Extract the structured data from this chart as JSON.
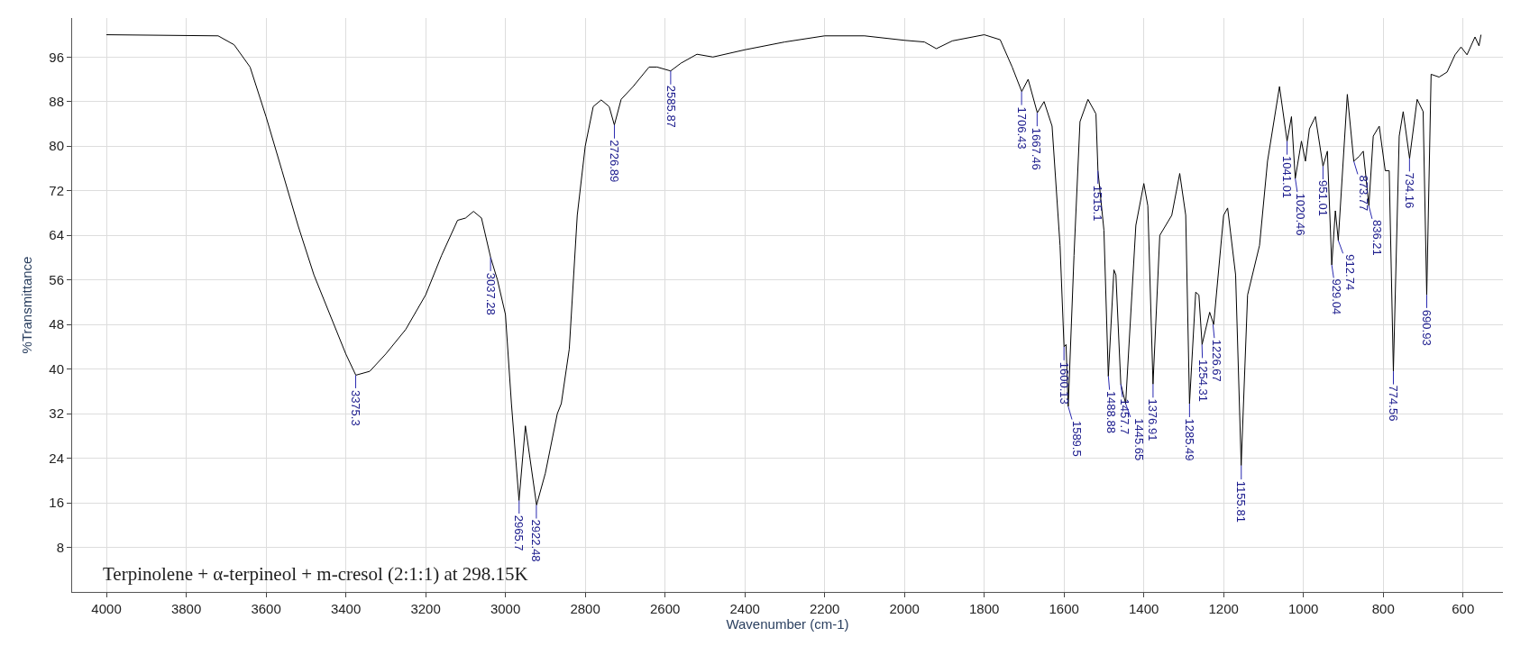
{
  "chart_data": {
    "type": "line",
    "xlabel": "Wavenumber (cm-1)",
    "ylabel": "%Transmittance",
    "xlim": [
      4086,
      500
    ],
    "xticks": [
      4000,
      3800,
      3600,
      3400,
      3200,
      3000,
      2800,
      2600,
      2400,
      2200,
      2000,
      1800,
      1600,
      1400,
      1200,
      1000,
      800,
      600
    ],
    "ylim": [
      0,
      103
    ],
    "yticks": [
      8,
      16,
      24,
      32,
      40,
      48,
      56,
      64,
      72,
      80,
      88,
      96
    ],
    "grid": true,
    "x": [
      4000,
      3720,
      3680,
      3640,
      3600,
      3560,
      3520,
      3480,
      3440,
      3400,
      3375,
      3340,
      3300,
      3250,
      3200,
      3160,
      3120,
      3100,
      3080,
      3060,
      3037,
      3020,
      3000,
      2985,
      2966,
      2950,
      2922,
      2900,
      2870,
      2860,
      2840,
      2820,
      2800,
      2780,
      2760,
      2740,
      2727,
      2710,
      2680,
      2640,
      2620,
      2586,
      2560,
      2520,
      2480,
      2400,
      2300,
      2200,
      2100,
      2000,
      1950,
      1920,
      1880,
      1800,
      1760,
      1730,
      1706,
      1690,
      1667,
      1650,
      1630,
      1610,
      1600,
      1595,
      1589.5,
      1575,
      1560,
      1540,
      1520,
      1515,
      1500,
      1489,
      1475,
      1470,
      1457.7,
      1445.6,
      1420,
      1400,
      1390,
      1377,
      1360,
      1330,
      1310,
      1295,
      1285.5,
      1270,
      1262,
      1254,
      1235,
      1225,
      1200,
      1190,
      1170,
      1156,
      1140,
      1110,
      1090,
      1060,
      1041,
      1030,
      1020.5,
      1005,
      995,
      985,
      970,
      951,
      940,
      929,
      920,
      912.7,
      890,
      873.8,
      860,
      850,
      836,
      825,
      810,
      795,
      785,
      774.6,
      760,
      750,
      734,
      715,
      700,
      691,
      680,
      660,
      640,
      620,
      605,
      590,
      570,
      560,
      555
    ],
    "series": [
      {
        "color": "#000000",
        "values": [
          100.0,
          99.8,
          98.2,
          94.2,
          85.3,
          75.6,
          65.8,
          56.9,
          49.8,
          42.7,
          38.9,
          39.6,
          42.7,
          47.1,
          53.3,
          60.4,
          66.7,
          67.1,
          68.3,
          67.1,
          60.0,
          56.0,
          49.8,
          33.8,
          16.4,
          29.8,
          15.6,
          21.3,
          32.0,
          33.8,
          43.6,
          67.6,
          80.0,
          87.1,
          88.3,
          87.1,
          83.8,
          88.4,
          90.7,
          94.2,
          94.2,
          93.5,
          94.9,
          96.5,
          96.0,
          97.3,
          98.7,
          99.8,
          99.8,
          99.0,
          98.7,
          97.5,
          98.9,
          100.0,
          99.1,
          94.2,
          89.8,
          92.0,
          86.0,
          88.0,
          83.6,
          62.2,
          44.0,
          44.4,
          33.3,
          60.4,
          84.4,
          88.4,
          85.8,
          75.6,
          64.9,
          38.7,
          57.8,
          56.9,
          37.3,
          33.8,
          65.8,
          73.3,
          69.3,
          37.3,
          64.0,
          67.6,
          75.1,
          67.6,
          33.8,
          53.8,
          53.3,
          44.4,
          50.2,
          48.0,
          67.6,
          68.9,
          56.9,
          22.7,
          53.3,
          62.2,
          77.3,
          90.7,
          80.9,
          85.3,
          74.2,
          80.9,
          77.3,
          83.1,
          85.3,
          76.4,
          79.1,
          58.7,
          68.4,
          63.1,
          89.3,
          77.3,
          78.2,
          79.1,
          69.3,
          81.8,
          83.6,
          75.6,
          75.6,
          39.6,
          81.8,
          86.2,
          77.8,
          88.4,
          86.2,
          53.3,
          92.9,
          92.4,
          93.3,
          96.4,
          97.8,
          96.4,
          99.6,
          98.0,
          100.0
        ]
      }
    ],
    "annotations": [
      "Terpinolene + α-terpineol + m-cresol (2:1:1) at 298.15K",
      {
        "text": "3375.3",
        "x": 3375.3,
        "y": 38.9
      },
      {
        "text": "3037.28",
        "x": 3037.28,
        "y": 60.0
      },
      {
        "text": "2965.7",
        "x": 2965.7,
        "y": 16.4
      },
      {
        "text": "2922.48",
        "x": 2922.48,
        "y": 15.6
      },
      {
        "text": "2726.89",
        "x": 2726.89,
        "y": 83.8
      },
      {
        "text": "2585.87",
        "x": 2585.87,
        "y": 93.5
      },
      {
        "text": "1706.43",
        "x": 1706.43,
        "y": 89.8
      },
      {
        "text": "1667.46",
        "x": 1667.46,
        "y": 86.0
      },
      {
        "text": "1600.13",
        "x": 1600.13,
        "y": 44.0
      },
      {
        "text": "1589.5",
        "x": 1589.5,
        "y": 33.3
      },
      {
        "text": "1515.1",
        "x": 1515.1,
        "y": 75.6
      },
      {
        "text": "1488.88",
        "x": 1488.88,
        "y": 38.7
      },
      {
        "text": "1457.7",
        "x": 1457.7,
        "y": 37.3
      },
      {
        "text": "1445.65",
        "x": 1445.65,
        "y": 33.8
      },
      {
        "text": "1376.91",
        "x": 1376.91,
        "y": 37.3
      },
      {
        "text": "1285.49",
        "x": 1285.49,
        "y": 33.8
      },
      {
        "text": "1254.31",
        "x": 1254.31,
        "y": 44.4
      },
      {
        "text": "1226.67",
        "x": 1226.67,
        "y": 48.0
      },
      {
        "text": "1155.81",
        "x": 1155.81,
        "y": 22.7
      },
      {
        "text": "1041.01",
        "x": 1041.01,
        "y": 80.9
      },
      {
        "text": "1020.46",
        "x": 1020.46,
        "y": 74.2
      },
      {
        "text": "951.01",
        "x": 951.01,
        "y": 76.4
      },
      {
        "text": "929.04",
        "x": 929.04,
        "y": 58.7
      },
      {
        "text": "912.74",
        "x": 912.74,
        "y": 63.1
      },
      {
        "text": "873.77",
        "x": 873.77,
        "y": 77.3
      },
      {
        "text": "836.21",
        "x": 836.21,
        "y": 69.3
      },
      {
        "text": "774.56",
        "x": 774.56,
        "y": 39.6
      },
      {
        "text": "734.16",
        "x": 734.16,
        "y": 77.8
      },
      {
        "text": "690.93",
        "x": 690.93,
        "y": 53.3
      }
    ]
  }
}
